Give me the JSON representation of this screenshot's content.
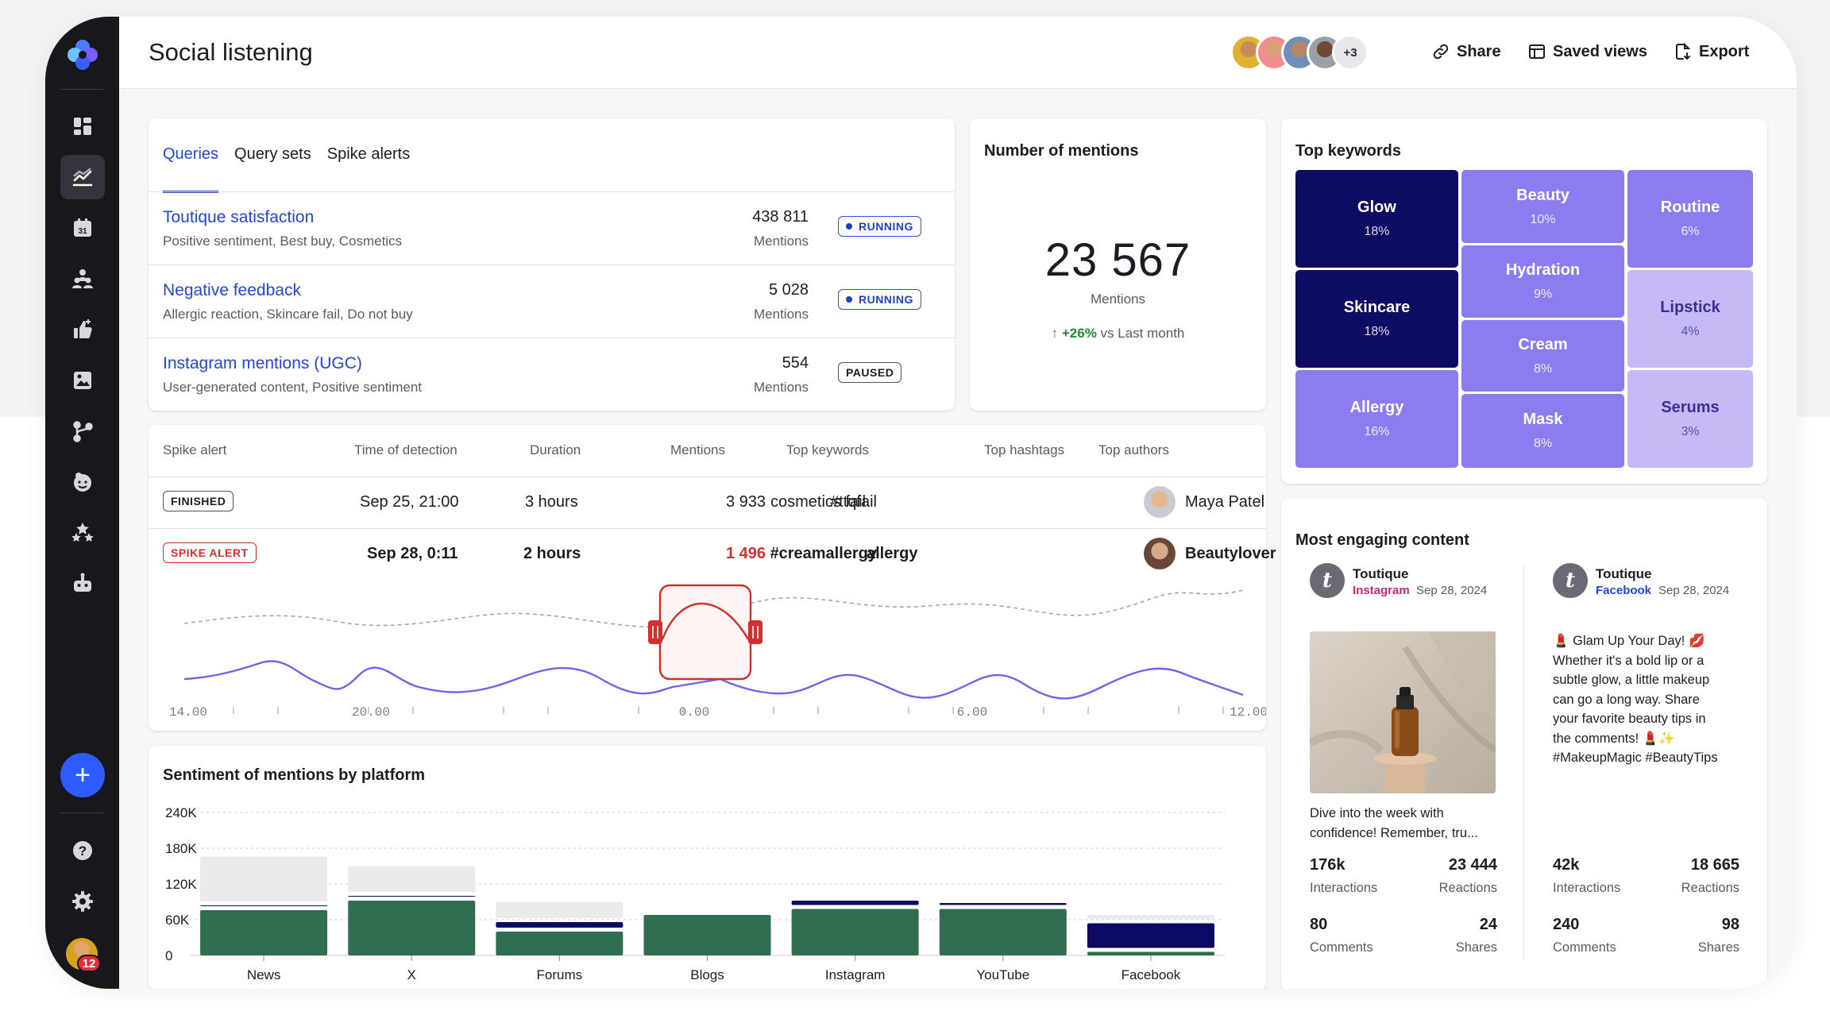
{
  "header": {
    "title": "Social listening",
    "more_avatars": "+3",
    "share": "Share",
    "saved_views": "Saved views",
    "export": "Export",
    "more": "···"
  },
  "sidebar": {
    "notifications": "12",
    "add": "+"
  },
  "queries": {
    "tabs": [
      "Queries",
      "Query sets",
      "Spike alerts"
    ],
    "rows": [
      {
        "title": "Toutique satisfaction",
        "sub": "Positive sentiment, Best buy, Cosmetics",
        "count": "438 811",
        "label": "Mentions",
        "status": "RUNNING"
      },
      {
        "title": "Negative feedback",
        "sub": "Allergic reaction, Skincare fail, Do not buy",
        "count": "5 028",
        "label": "Mentions",
        "status": "RUNNING"
      },
      {
        "title": "Instagram mentions (UGC)",
        "sub": "User-generated content, Positive sentiment",
        "count": "554",
        "label": "Mentions",
        "status": "PAUSED"
      }
    ]
  },
  "mentions": {
    "title": "Number of mentions",
    "value": "23 567",
    "label": "Mentions",
    "trend_value": "+26%",
    "trend_text": "vs Last month"
  },
  "keywords": {
    "title": "Top keywords",
    "items": [
      {
        "name": "Glow",
        "pct": "18%"
      },
      {
        "name": "Skincare",
        "pct": "18%"
      },
      {
        "name": "Allergy",
        "pct": "16%"
      },
      {
        "name": "Beauty",
        "pct": "10%"
      },
      {
        "name": "Hydration",
        "pct": "9%"
      },
      {
        "name": "Cream",
        "pct": "8%"
      },
      {
        "name": "Mask",
        "pct": "8%"
      },
      {
        "name": "Routine",
        "pct": "6%"
      },
      {
        "name": "Lipstick",
        "pct": "4%"
      },
      {
        "name": "Serums",
        "pct": "3%"
      }
    ]
  },
  "spike": {
    "headers": [
      "Spike alert",
      "Time of detection",
      "Duration",
      "Mentions",
      "Top keywords",
      "Top hashtags",
      "Top authors"
    ],
    "rows": [
      {
        "status": "FINISHED",
        "time": "Sep 25, 21:00",
        "duration": "3 hours",
        "mentions": "3 933",
        "keyword": "cosmetics fail",
        "hashtag": "#ttqfail",
        "author": "Maya Patel"
      },
      {
        "status": "SPIKE ALERT",
        "time": "Sep 28, 0:11",
        "duration": "2 hours",
        "mentions": "1 496",
        "keyword": "allergy",
        "hashtag": "#creamallergy",
        "author": "Beautylover"
      }
    ],
    "ticks": [
      "14.00",
      "20.00",
      "0.00",
      "6.00",
      "12.00"
    ]
  },
  "chart_data": {
    "type": "bar",
    "title": "Sentiment of mentions by platform",
    "categories": [
      "News",
      "X",
      "Forums",
      "Blogs",
      "Instagram",
      "YouTube",
      "Facebook"
    ],
    "series": [
      {
        "name": "Positive",
        "color": "#2f6e4f",
        "values": [
          76000,
          92000,
          40000,
          68000,
          78000,
          78000,
          6000
        ]
      },
      {
        "name": "Negative",
        "color": "#0c0a63",
        "values": [
          8000,
          8000,
          16000,
          0,
          14000,
          10000,
          48000
        ]
      },
      {
        "name": "Neutral",
        "color": "#ebebee",
        "values": [
          82000,
          50000,
          34000,
          0,
          0,
          0,
          14000
        ]
      }
    ],
    "yticks": [
      "240K",
      "180K",
      "120K",
      "60K",
      "0"
    ],
    "ylim": [
      0,
      240000
    ],
    "stacked": true,
    "grid": true
  },
  "engaging": {
    "title": "Most engaging content",
    "posts": [
      {
        "author": "Toutique",
        "platform": "Instagram",
        "date": "Sep 28, 2024",
        "text": "Dive into the week with confidence! Remember, tru...",
        "interactions": "176k",
        "interactions_label": "Interactions",
        "reactions": "23 444",
        "reactions_label": "Reactions",
        "comments": "80",
        "comments_label": "Comments",
        "shares": "24",
        "shares_label": "Shares"
      },
      {
        "author": "Toutique",
        "platform": "Facebook",
        "date": "Sep 28, 2024",
        "text_lines": [
          "💄 Glam Up Your Day! 💋",
          "Whether it's a bold lip or a",
          "subtle glow, a little makeup",
          "can go a long way. Share",
          "your favorite beauty tips in",
          "the comments! 💄✨",
          "#MakeupMagic #BeautyTips"
        ],
        "interactions": "42k",
        "interactions_label": "Interactions",
        "reactions": "18 665",
        "reactions_label": "Reactions",
        "comments": "240",
        "comments_label": "Comments",
        "shares": "98",
        "shares_label": "Shares"
      }
    ]
  }
}
